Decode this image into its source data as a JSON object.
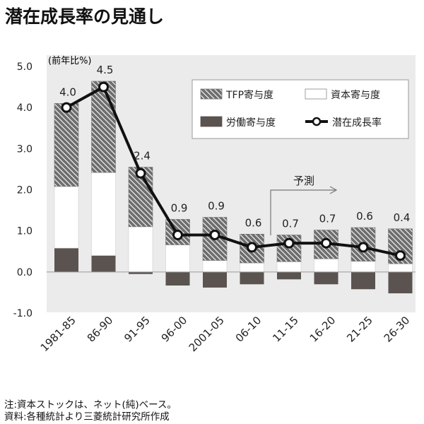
{
  "title": "潜在成長率の見通し",
  "notes": {
    "line1": "注:資本ストックは、ネット(純)ベース。",
    "line2": "資料:各種統計より三菱統計研究所作成"
  },
  "colors": {
    "panel_bg": "#ebebeb",
    "tfp_fill": "#6e6e6e",
    "tfp_stripe": "#ffffff",
    "capital_fill": "#ffffff",
    "labor_fill": "#5a5350",
    "line": "#111111"
  },
  "chart_data": {
    "type": "bar",
    "stacked": true,
    "categories": [
      "1981-85",
      "86-90",
      "91-95",
      "96-00",
      "2001-05",
      "06-10",
      "11-15",
      "16-20",
      "21-25",
      "26-30"
    ],
    "series": [
      {
        "name": "労働寄与度",
        "key": "labor",
        "values": [
          0.58,
          0.4,
          -0.05,
          -0.33,
          -0.38,
          -0.3,
          -0.18,
          -0.3,
          -0.42,
          -0.52
        ]
      },
      {
        "name": "資本寄与度",
        "key": "capital",
        "values": [
          1.5,
          2.02,
          1.1,
          0.66,
          0.28,
          0.22,
          0.25,
          0.32,
          0.26,
          0.2
        ]
      },
      {
        "name": "TFP寄与度",
        "key": "tfp",
        "values": [
          2.02,
          2.22,
          1.45,
          0.62,
          1.05,
          0.7,
          0.65,
          0.7,
          0.82,
          0.85
        ]
      }
    ],
    "line": {
      "name": "潜在成長率",
      "values": [
        4.0,
        4.5,
        2.4,
        0.9,
        0.9,
        0.6,
        0.7,
        0.7,
        0.6,
        0.4
      ]
    },
    "line_labels": [
      "4.0",
      "4.5",
      "2.4",
      "0.9",
      "0.9",
      "0.6",
      "0.7",
      "0.7",
      "0.6",
      "0.4"
    ],
    "ylabel": "(前年比%)",
    "ylim": [
      -1.0,
      5.0
    ],
    "yticks": [
      "5.0",
      "4.0",
      "3.0",
      "2.0",
      "1.0",
      "0.0",
      "-1.0"
    ],
    "forecast_label": "予測",
    "forecast_from": "11-15",
    "legend": {
      "tfp": "TFP寄与度",
      "capital": "資本寄与度",
      "labor": "労働寄与度",
      "line": "潜在成長率"
    },
    "legend_position": "top-right",
    "grid": false
  }
}
